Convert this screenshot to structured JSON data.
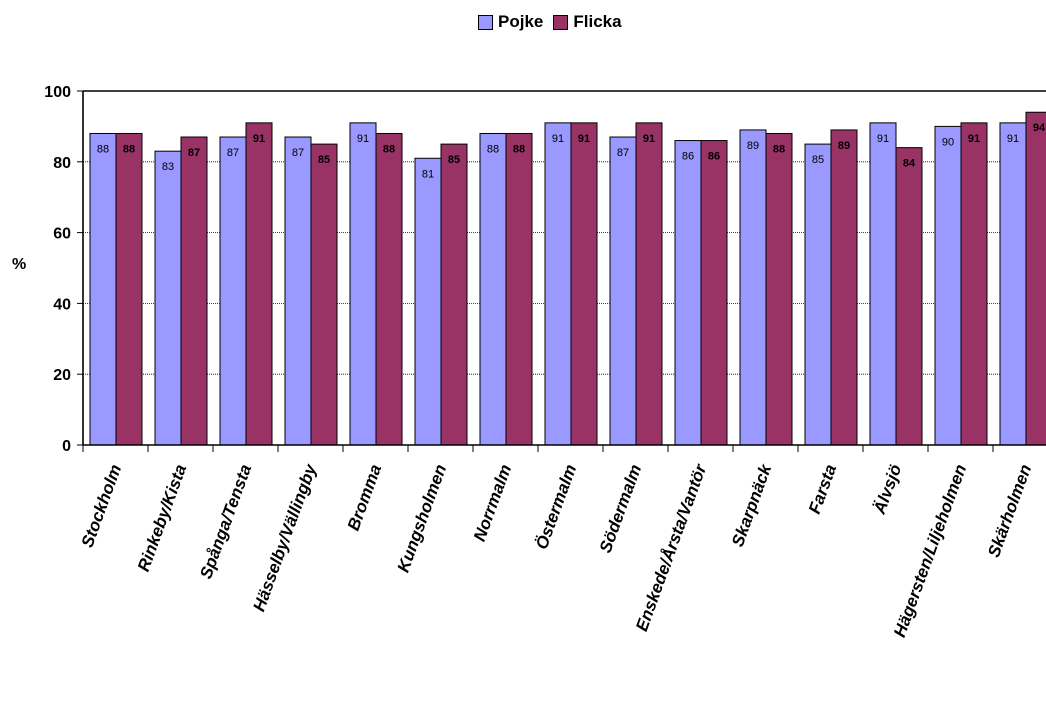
{
  "chart_data": {
    "type": "bar",
    "categories": [
      "Stockholm",
      "Rinkeby/Kista",
      "Spånga/Tensta",
      "Hässelby/Vällingby",
      "Bromma",
      "Kungsholmen",
      "Norrmalm",
      "Östermalm",
      "Södermalm",
      "Enskede/Årsta/Vantör",
      "Skarpnäck",
      "Farsta",
      "Älvsjö",
      "Hägersten/Liljeholmen",
      "Skärholmen"
    ],
    "series": [
      {
        "name": "Pojke",
        "color": "#9999ff",
        "values": [
          88,
          83,
          87,
          87,
          91,
          81,
          88,
          91,
          87,
          86,
          89,
          85,
          91,
          90,
          91
        ]
      },
      {
        "name": "Flicka",
        "color": "#993366",
        "values": [
          88,
          87,
          91,
          85,
          88,
          85,
          88,
          91,
          91,
          86,
          88,
          89,
          84,
          91,
          94
        ]
      }
    ],
    "ylabel": "%",
    "ylim": [
      0,
      100
    ],
    "yticks": [
      0,
      20,
      40,
      60,
      80,
      100
    ],
    "grid": true,
    "legend_position": "top"
  }
}
